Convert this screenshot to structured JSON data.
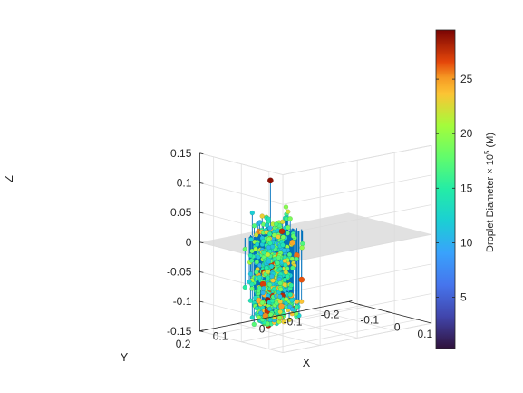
{
  "chart_data": {
    "type": "scatter",
    "style": "stem3",
    "xlabel": "X",
    "ylabel": "Y",
    "zlabel": "Z",
    "x_ticks": [
      "-0.1",
      "0",
      "0.1"
    ],
    "y_ticks": [
      "-0.2",
      "-0.1",
      "0",
      "0.1",
      "0.2"
    ],
    "z_ticks": [
      "-0.15",
      "-0.1",
      "-0.05",
      "0",
      "0.05",
      "0.1",
      "0.15"
    ],
    "xlim": [
      -0.15,
      0.15
    ],
    "ylim": [
      -0.2,
      0.2
    ],
    "zlim": [
      -0.15,
      0.15
    ],
    "grid": true,
    "reference_plane_z": 0,
    "stem_color": "#0072bd",
    "plane_color": "#d9d9d9",
    "colormap": "turbo",
    "colorbar": {
      "label_text": "Droplet Diameter × 10",
      "label_exponent": "5",
      "label_unit": " (M)",
      "ticks": [
        "5",
        "10",
        "15",
        "20",
        "25"
      ],
      "tick_values": [
        5,
        10,
        15,
        20,
        25
      ],
      "range": [
        0.3,
        29.5
      ],
      "placement": "right"
    },
    "cluster": {
      "center_x": -0.1,
      "center_y": 0.04,
      "spread_x": 0.04,
      "spread_y": 0.09,
      "z_range": [
        -0.15,
        0.05
      ],
      "approx_points": 650
    },
    "outliers": [
      {
        "x": 0.105,
        "y": 0.2,
        "z": 0.135,
        "d": 29
      }
    ]
  }
}
